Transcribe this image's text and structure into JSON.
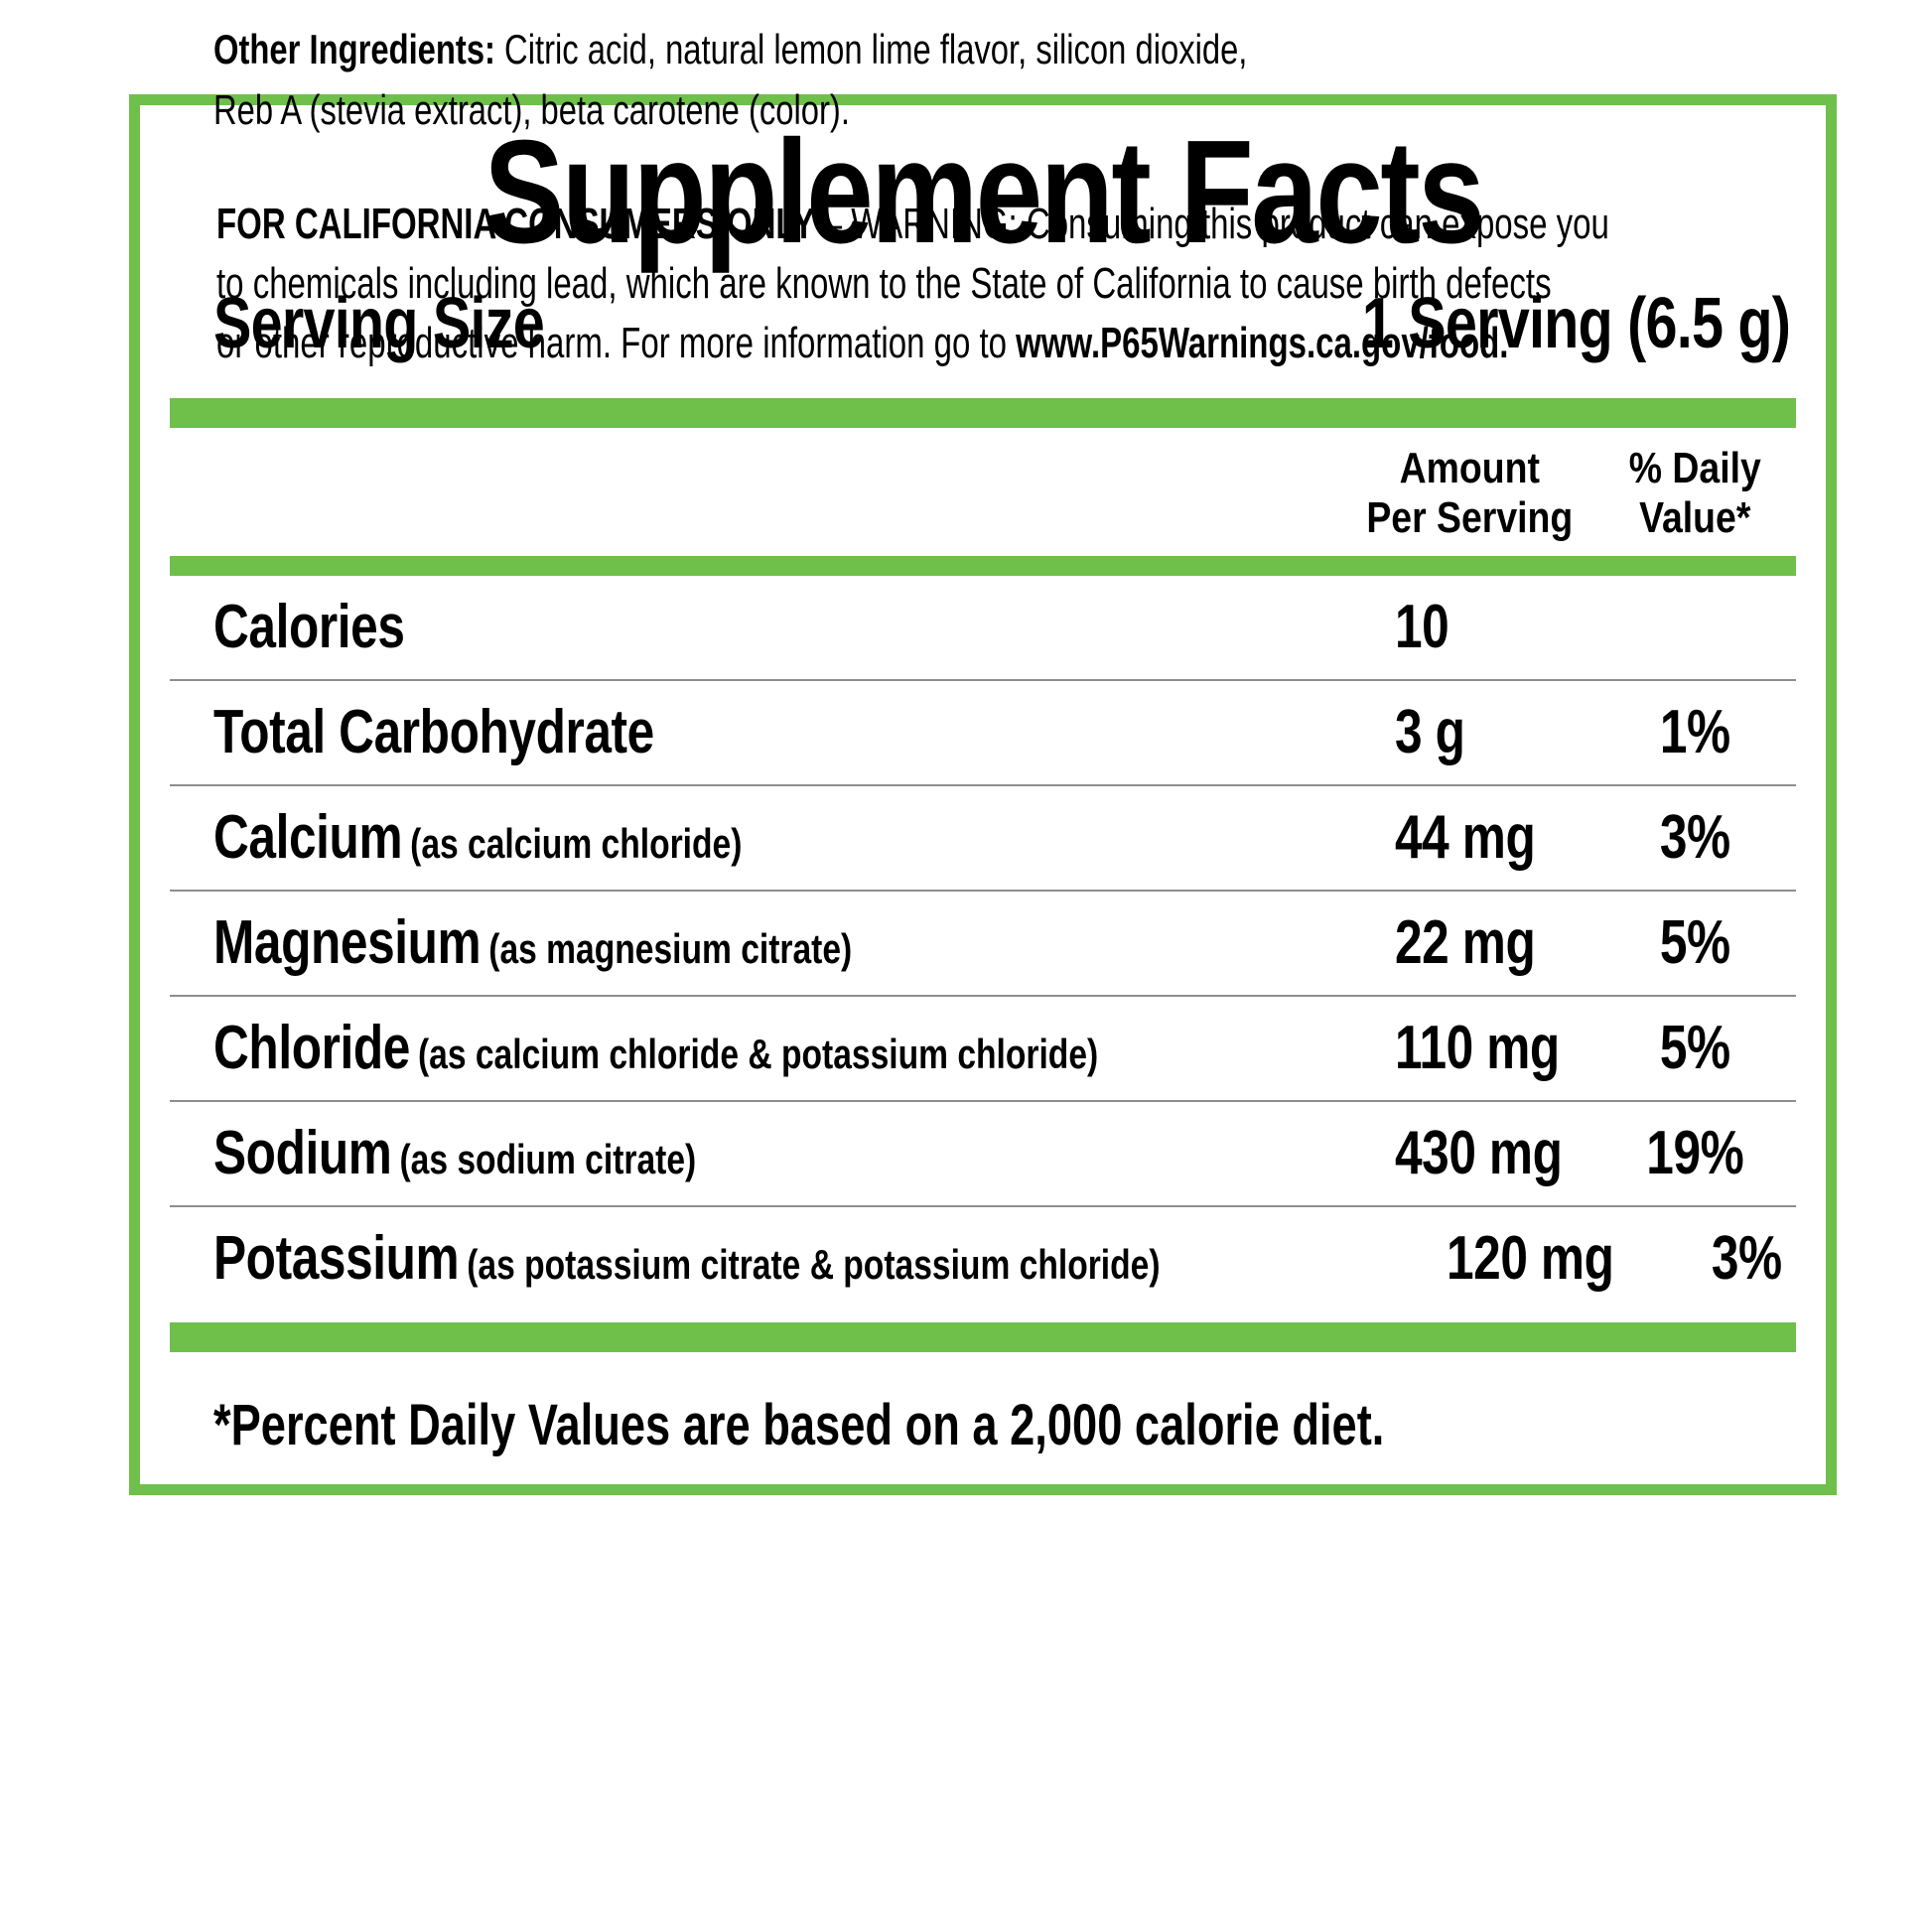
{
  "label": {
    "title": "Supplement Facts",
    "serving_size_label": "Serving Size",
    "serving_size_value": "1 Serving (6.5 g)",
    "amount_header_line1": "Amount",
    "amount_header_line2": "Per Serving",
    "dv_header_line1": "% Daily",
    "dv_header_line2": "Value*",
    "rows": [
      {
        "name": "Calories",
        "detail": "",
        "amount": "10",
        "dv": ""
      },
      {
        "name": "Total Carbohydrate",
        "detail": "",
        "amount": "3 g",
        "dv": "1%"
      },
      {
        "name": "Calcium",
        "detail": "(as calcium chloride)",
        "amount": "44 mg",
        "dv": "3%"
      },
      {
        "name": "Magnesium",
        "detail": "(as magnesium citrate)",
        "amount": "22 mg",
        "dv": "5%"
      },
      {
        "name": "Chloride",
        "detail": "(as calcium chloride & potassium chloride)",
        "amount": "110 mg",
        "dv": "5%"
      },
      {
        "name": "Sodium",
        "detail": "(as sodium citrate)",
        "amount": "430 mg",
        "dv": "19%"
      },
      {
        "name": "Potassium",
        "detail": "(as potassium citrate & potassium chloride)",
        "amount": "120 mg",
        "dv": "3%"
      }
    ],
    "footnote": "*Percent Daily Values are based on a 2,000 calorie diet."
  },
  "other_ingredients": {
    "label": "Other Ingredients:",
    "line1_rest": " Citric acid, natural lemon lime flavor, silicon dioxide,",
    "line2": "Reb A (stevia extract), beta carotene (color)."
  },
  "california_warning": {
    "bold_lead": "FOR CALIFORNIA CONSUMERS ONLY",
    "line1_rest": " – WARNING: Consuming this product can expose you",
    "line2": "to chemicals including lead, which are known to the State of California to cause birth defects",
    "line3_pre": "or other reproductive harm. For more information go to ",
    "line3_bold": "www.P65Warnings.ca.gov/food."
  },
  "colors": {
    "accent_green": "#6fbf4b",
    "divider_gray": "#8e8e8e",
    "warning_background": "#e7e9ea"
  }
}
